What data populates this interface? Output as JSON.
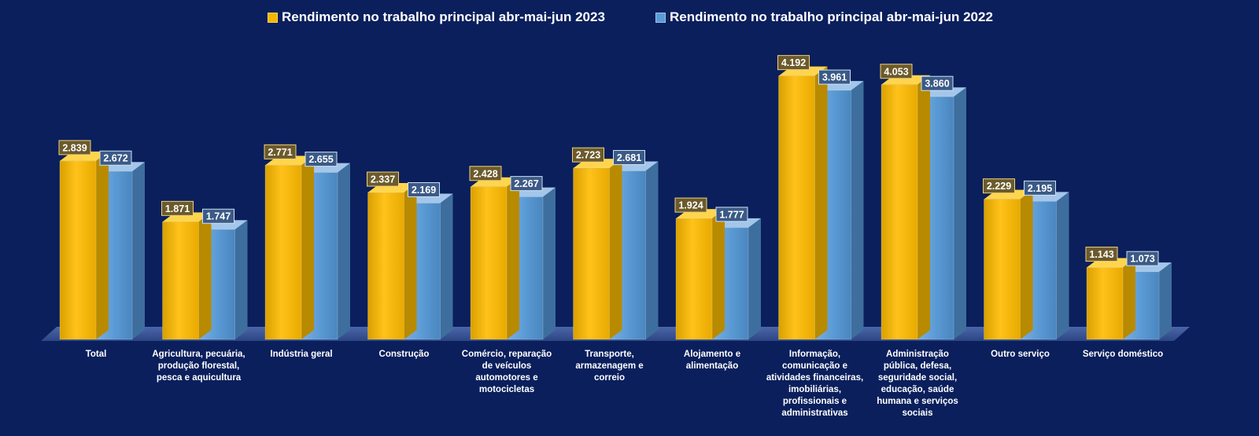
{
  "colors": {
    "background": "#0a1f5c",
    "series_2023": "#f5b800",
    "series_2022": "#5b9bd5"
  },
  "legend": {
    "item_2023": "Rendimento no trabalho principal abr-mai-jun 2023",
    "item_2022": "Rendimento no trabalho principal abr-mai-jun 2022"
  },
  "chart_data": {
    "type": "bar",
    "style": "3d-clustered-column",
    "categories": [
      "Total",
      "Agricultura, pecuária, produção florestal, pesca e aquicultura",
      "Indústria geral",
      "Construção",
      "Comércio, reparação de veículos automotores e motocicletas",
      "Transporte, armazenagem e correio",
      "Alojamento e alimentação",
      "Informação, comunicação e atividades financeiras, imobiliárias, profissionais e administrativas",
      "Administração pública, defesa, seguridade social, educação, saúde humana e serviços sociais",
      "Outro serviço",
      "Serviço doméstico"
    ],
    "category_lines": [
      [
        "Total"
      ],
      [
        "Agricultura, pecuária,",
        "produção florestal,",
        "pesca e aquicultura"
      ],
      [
        "Indústria geral"
      ],
      [
        "Construção"
      ],
      [
        "Comércio, reparação",
        "de veículos",
        "automotores e",
        "motocicletas"
      ],
      [
        "Transporte,",
        "armazenagem e",
        "correio"
      ],
      [
        "Alojamento e",
        "alimentação"
      ],
      [
        "Informação,",
        "comunicação e",
        "atividades financeiras,",
        "imobiliárias,",
        "profissionais e",
        "administrativas"
      ],
      [
        "Administração",
        "pública, defesa,",
        "seguridade social,",
        "educação, saúde",
        "humana e serviços",
        "sociais"
      ],
      [
        "Outro serviço"
      ],
      [
        "Serviço doméstico"
      ]
    ],
    "series": [
      {
        "name": "Rendimento no trabalho principal abr-mai-jun 2023",
        "values": [
          2839,
          1871,
          2771,
          2337,
          2428,
          2723,
          1924,
          4192,
          4053,
          2229,
          1143
        ],
        "labels": [
          "2.839",
          "1.871",
          "2.771",
          "2.337",
          "2.428",
          "2.723",
          "1.924",
          "4.192",
          "4.053",
          "2.229",
          "1.143"
        ]
      },
      {
        "name": "Rendimento no trabalho principal abr-mai-jun 2022",
        "values": [
          2672,
          1747,
          2655,
          2169,
          2267,
          2681,
          1777,
          3961,
          3860,
          2195,
          1073
        ],
        "labels": [
          "2.672",
          "1.747",
          "2.655",
          "2.169",
          "2.267",
          "2.681",
          "1.777",
          "3.961",
          "3.860",
          "2.195",
          "1.073"
        ]
      }
    ],
    "ylim": [
      0,
      4500
    ],
    "grid": false,
    "legend_position": "top"
  }
}
